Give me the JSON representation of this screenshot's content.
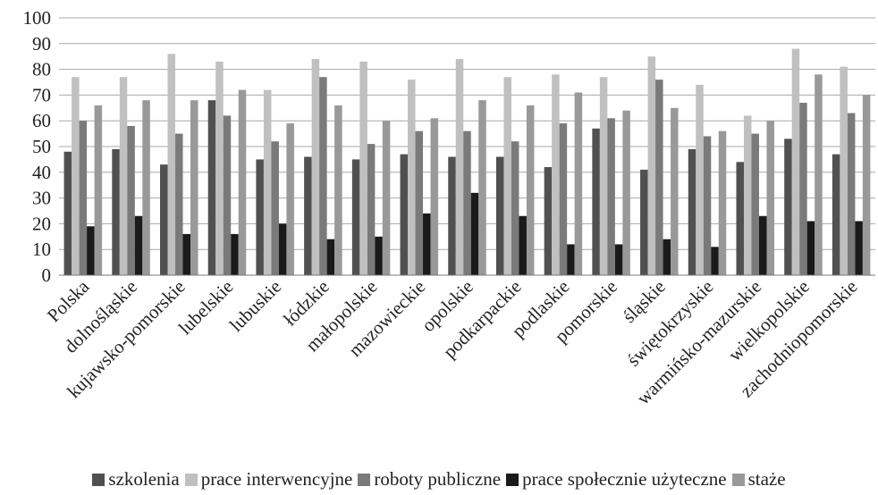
{
  "chart_data": {
    "type": "bar",
    "title": "",
    "xlabel": "",
    "ylabel": "",
    "ylim": [
      0,
      100
    ],
    "yticks": [
      0,
      10,
      20,
      30,
      40,
      50,
      60,
      70,
      80,
      90,
      100
    ],
    "grid": true,
    "legend_position": "bottom",
    "categories": [
      "Polska",
      "dolnośląskie",
      "kujawsko-pomorskie",
      "lubelskie",
      "lubuskie",
      "łódzkie",
      "małopolskie",
      "mazowieckie",
      "opolskie",
      "podkarpackie",
      "podlaskie",
      "pomorskie",
      "śląskie",
      "świętokrzyskie",
      "warmińsko-mazurskie",
      "wielkopolskie",
      "zachodniopomorskie"
    ],
    "series": [
      {
        "name": "szkolenia",
        "color": "#505050",
        "values": [
          48,
          49,
          43,
          68,
          45,
          46,
          45,
          47,
          46,
          46,
          42,
          57,
          41,
          49,
          44,
          53,
          47
        ]
      },
      {
        "name": "prace interwencyjne",
        "color": "#c0c0c0",
        "values": [
          77,
          77,
          86,
          83,
          72,
          84,
          83,
          76,
          84,
          77,
          78,
          77,
          85,
          74,
          62,
          88,
          81
        ]
      },
      {
        "name": "roboty publiczne",
        "color": "#7a7a7a",
        "values": [
          60,
          58,
          55,
          62,
          52,
          77,
          51,
          56,
          56,
          52,
          59,
          61,
          76,
          54,
          55,
          67,
          63
        ]
      },
      {
        "name": "prace społecznie użyteczne",
        "color": "#1a1a1a",
        "values": [
          19,
          23,
          16,
          16,
          20,
          14,
          15,
          24,
          32,
          23,
          12,
          12,
          14,
          11,
          23,
          21,
          21
        ]
      },
      {
        "name": "staże",
        "color": "#999999",
        "values": [
          66,
          68,
          68,
          72,
          59,
          66,
          60,
          61,
          68,
          66,
          71,
          64,
          65,
          56,
          60,
          78,
          70
        ]
      }
    ]
  }
}
